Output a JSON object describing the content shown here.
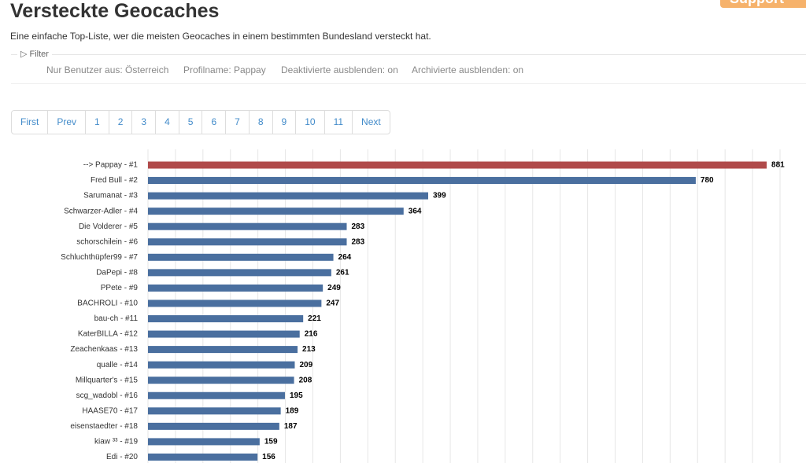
{
  "header": {
    "title": "Versteckte Geocaches",
    "subtitle": "Eine einfache Top-Liste, wer die meisten Geocaches in einem bestimmten Bundesland versteckt hat.",
    "support": "Support"
  },
  "filter": {
    "legend": "Filter",
    "items": [
      "Nur Benutzer aus: Österreich",
      "Profilname: Pappay",
      "Deaktivierte ausblenden: on",
      "Archivierte ausblenden: on"
    ]
  },
  "pagination": [
    "First",
    "Prev",
    "1",
    "2",
    "3",
    "4",
    "5",
    "6",
    "7",
    "8",
    "9",
    "10",
    "11",
    "Next"
  ],
  "chart_data": {
    "type": "hbar",
    "categories": [
      "--> Pappay - #1",
      "Fred Bull - #2",
      "Sarumanat - #3",
      "Schwarzer-Adler - #4",
      "Die Volderer - #5",
      "schorschilein - #6",
      "Schluchthüpfer99 - #7",
      "DaPepi - #8",
      "PPete - #9",
      "BACHROLI - #10",
      "bau-ch - #11",
      "KaterBILLA - #12",
      "Zeachenkaas - #13",
      "qualle - #14",
      "Millquarter's - #15",
      "scg_wadobl - #16",
      "HAASE70 - #17",
      "eisenstaedter - #18",
      "kiaw ³³ - #19",
      "Edi - #20"
    ],
    "values": [
      881,
      780,
      399,
      364,
      283,
      283,
      264,
      261,
      249,
      247,
      221,
      216,
      213,
      209,
      208,
      195,
      189,
      187,
      159,
      156
    ],
    "colors": [
      "#b04a4a",
      "#4a6f9f",
      "#4a6f9f",
      "#4a6f9f",
      "#4a6f9f",
      "#4a6f9f",
      "#4a6f9f",
      "#4a6f9f",
      "#4a6f9f",
      "#4a6f9f",
      "#4a6f9f",
      "#4a6f9f",
      "#4a6f9f",
      "#4a6f9f",
      "#4a6f9f",
      "#4a6f9f",
      "#4a6f9f",
      "#4a6f9f",
      "#4a6f9f",
      "#4a6f9f"
    ],
    "xlim": [
      0,
      900
    ],
    "grid": true
  }
}
